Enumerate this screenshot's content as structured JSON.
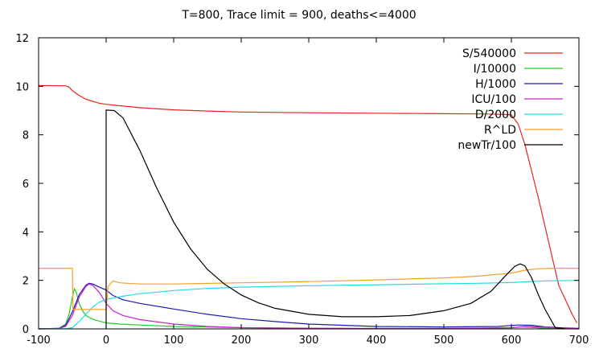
{
  "chart_data": {
    "type": "line",
    "title": "T=800, Trace limit = 900,  deaths<=4000",
    "xlabel": "",
    "ylabel": "",
    "xlim": [
      -100,
      700
    ],
    "ylim": [
      0,
      12
    ],
    "x_ticks": [
      -100,
      0,
      100,
      200,
      300,
      400,
      500,
      600,
      700
    ],
    "y_ticks": [
      0,
      2,
      4,
      6,
      8,
      10,
      12
    ],
    "legend_position": "top-right",
    "grid": false,
    "series": [
      {
        "name": "S/540000",
        "color": "#e8251c",
        "points": [
          [
            -100,
            10.03
          ],
          [
            -60,
            10.02
          ],
          [
            -55,
            9.97
          ],
          [
            -50,
            9.82
          ],
          [
            -40,
            9.62
          ],
          [
            -30,
            9.47
          ],
          [
            -20,
            9.38
          ],
          [
            -10,
            9.3
          ],
          [
            0,
            9.26
          ],
          [
            20,
            9.2
          ],
          [
            50,
            9.12
          ],
          [
            100,
            9.03
          ],
          [
            150,
            8.98
          ],
          [
            200,
            8.94
          ],
          [
            300,
            8.91
          ],
          [
            400,
            8.89
          ],
          [
            500,
            8.87
          ],
          [
            560,
            8.86
          ],
          [
            590,
            8.84
          ],
          [
            600,
            8.82
          ],
          [
            610,
            8.45
          ],
          [
            620,
            7.6
          ],
          [
            630,
            6.5
          ],
          [
            640,
            5.4
          ],
          [
            650,
            4.2
          ],
          [
            660,
            3.0
          ],
          [
            670,
            1.8
          ],
          [
            680,
            1.2
          ],
          [
            690,
            0.6
          ],
          [
            697,
            0.25
          ]
        ]
      },
      {
        "name": "I/10000",
        "color": "#22cc22",
        "points": [
          [
            -100,
            0
          ],
          [
            -70,
            0.02
          ],
          [
            -60,
            0.2
          ],
          [
            -55,
            0.6
          ],
          [
            -50,
            1.3
          ],
          [
            -47,
            1.65
          ],
          [
            -44,
            1.5
          ],
          [
            -40,
            1.05
          ],
          [
            -35,
            0.75
          ],
          [
            -30,
            0.55
          ],
          [
            -20,
            0.4
          ],
          [
            -10,
            0.32
          ],
          [
            0,
            0.25
          ],
          [
            20,
            0.2
          ],
          [
            50,
            0.16
          ],
          [
            100,
            0.1
          ],
          [
            200,
            0.05
          ],
          [
            300,
            0.03
          ],
          [
            400,
            0.02
          ],
          [
            500,
            0.02
          ],
          [
            580,
            0.03
          ],
          [
            600,
            0.05
          ],
          [
            615,
            0.08
          ],
          [
            630,
            0.06
          ],
          [
            650,
            0.02
          ],
          [
            670,
            0.01
          ],
          [
            700,
            0
          ]
        ]
      },
      {
        "name": "H/1000",
        "color": "#1a1ab5",
        "points": [
          [
            -100,
            0
          ],
          [
            -70,
            0.02
          ],
          [
            -60,
            0.15
          ],
          [
            -50,
            0.7
          ],
          [
            -40,
            1.4
          ],
          [
            -30,
            1.8
          ],
          [
            -25,
            1.88
          ],
          [
            -20,
            1.85
          ],
          [
            -10,
            1.72
          ],
          [
            0,
            1.6
          ],
          [
            10,
            1.38
          ],
          [
            25,
            1.2
          ],
          [
            50,
            1.05
          ],
          [
            100,
            0.82
          ],
          [
            150,
            0.6
          ],
          [
            200,
            0.42
          ],
          [
            250,
            0.3
          ],
          [
            300,
            0.2
          ],
          [
            400,
            0.1
          ],
          [
            500,
            0.08
          ],
          [
            580,
            0.1
          ],
          [
            610,
            0.16
          ],
          [
            630,
            0.15
          ],
          [
            650,
            0.08
          ],
          [
            680,
            0.04
          ],
          [
            700,
            0.02
          ]
        ]
      },
      {
        "name": "ICU/100",
        "color": "#cc22cc",
        "points": [
          [
            -100,
            0
          ],
          [
            -70,
            0.02
          ],
          [
            -60,
            0.1
          ],
          [
            -50,
            0.55
          ],
          [
            -40,
            1.3
          ],
          [
            -30,
            1.75
          ],
          [
            -25,
            1.85
          ],
          [
            -20,
            1.8
          ],
          [
            -10,
            1.5
          ],
          [
            0,
            1.05
          ],
          [
            10,
            0.75
          ],
          [
            25,
            0.55
          ],
          [
            50,
            0.38
          ],
          [
            100,
            0.2
          ],
          [
            150,
            0.1
          ],
          [
            200,
            0.05
          ],
          [
            300,
            0.02
          ],
          [
            400,
            0.01
          ],
          [
            500,
            0.01
          ],
          [
            600,
            0.05
          ],
          [
            620,
            0.1
          ],
          [
            640,
            0.08
          ],
          [
            670,
            0.03
          ],
          [
            700,
            0.01
          ]
        ]
      },
      {
        "name": "D/2000",
        "color": "#22dddd",
        "points": [
          [
            -100,
            0
          ],
          [
            -60,
            0.01
          ],
          [
            -50,
            0.05
          ],
          [
            -40,
            0.3
          ],
          [
            -30,
            0.6
          ],
          [
            -20,
            0.9
          ],
          [
            -10,
            1.1
          ],
          [
            0,
            1.22
          ],
          [
            25,
            1.35
          ],
          [
            50,
            1.45
          ],
          [
            100,
            1.58
          ],
          [
            150,
            1.67
          ],
          [
            200,
            1.72
          ],
          [
            300,
            1.78
          ],
          [
            400,
            1.82
          ],
          [
            500,
            1.86
          ],
          [
            550,
            1.88
          ],
          [
            600,
            1.91
          ],
          [
            620,
            1.94
          ],
          [
            650,
            1.98
          ],
          [
            700,
            2.0
          ]
        ]
      },
      {
        "name": "R^LD",
        "color": "#f2a22a",
        "points": [
          [
            -100,
            2.5
          ],
          [
            -50,
            2.5
          ],
          [
            -49,
            0.8
          ],
          [
            0,
            0.8
          ],
          [
            3,
            1.75
          ],
          [
            10,
            1.98
          ],
          [
            20,
            1.9
          ],
          [
            50,
            1.85
          ],
          [
            100,
            1.85
          ],
          [
            200,
            1.9
          ],
          [
            300,
            1.95
          ],
          [
            400,
            2.02
          ],
          [
            500,
            2.1
          ],
          [
            550,
            2.17
          ],
          [
            600,
            2.3
          ],
          [
            620,
            2.42
          ],
          [
            640,
            2.48
          ],
          [
            660,
            2.5
          ],
          [
            700,
            2.5
          ]
        ]
      },
      {
        "name": "newTr/100",
        "color": "#000000",
        "points": [
          [
            0,
            0
          ],
          [
            0,
            9.02
          ],
          [
            12,
            9.0
          ],
          [
            25,
            8.7
          ],
          [
            50,
            7.35
          ],
          [
            75,
            5.8
          ],
          [
            100,
            4.4
          ],
          [
            125,
            3.3
          ],
          [
            150,
            2.45
          ],
          [
            175,
            1.85
          ],
          [
            200,
            1.4
          ],
          [
            225,
            1.08
          ],
          [
            250,
            0.85
          ],
          [
            300,
            0.6
          ],
          [
            350,
            0.5
          ],
          [
            400,
            0.5
          ],
          [
            450,
            0.55
          ],
          [
            500,
            0.75
          ],
          [
            540,
            1.05
          ],
          [
            570,
            1.55
          ],
          [
            590,
            2.15
          ],
          [
            605,
            2.58
          ],
          [
            613,
            2.68
          ],
          [
            620,
            2.6
          ],
          [
            630,
            2.1
          ],
          [
            640,
            1.4
          ],
          [
            650,
            0.8
          ],
          [
            660,
            0.3
          ],
          [
            665,
            0.05
          ],
          [
            680,
            0
          ]
        ]
      }
    ]
  }
}
